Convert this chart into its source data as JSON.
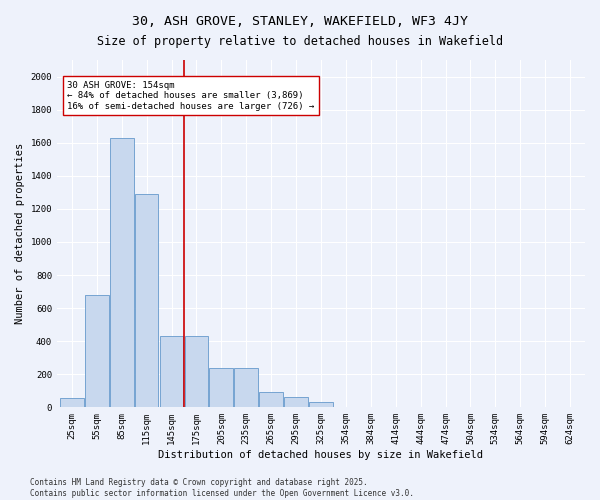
{
  "title": "30, ASH GROVE, STANLEY, WAKEFIELD, WF3 4JY",
  "subtitle": "Size of property relative to detached houses in Wakefield",
  "xlabel": "Distribution of detached houses by size in Wakefield",
  "ylabel": "Number of detached properties",
  "categories": [
    "25sqm",
    "55sqm",
    "85sqm",
    "115sqm",
    "145sqm",
    "175sqm",
    "205sqm",
    "235sqm",
    "265sqm",
    "295sqm",
    "325sqm",
    "354sqm",
    "384sqm",
    "414sqm",
    "444sqm",
    "474sqm",
    "504sqm",
    "534sqm",
    "564sqm",
    "594sqm",
    "624sqm"
  ],
  "values": [
    55,
    680,
    1630,
    1290,
    430,
    430,
    240,
    240,
    90,
    60,
    35,
    0,
    0,
    0,
    0,
    0,
    0,
    0,
    0,
    0,
    0
  ],
  "bar_color": "#c8d8ee",
  "bar_edgecolor": "#6699cc",
  "property_line_x": 4.5,
  "property_line_color": "#cc0000",
  "annotation_text": "30 ASH GROVE: 154sqm\n← 84% of detached houses are smaller (3,869)\n16% of semi-detached houses are larger (726) →",
  "annotation_box_color": "#ffffff",
  "annotation_box_edgecolor": "#cc0000",
  "ylim": [
    0,
    2100
  ],
  "yticks": [
    0,
    200,
    400,
    600,
    800,
    1000,
    1200,
    1400,
    1600,
    1800,
    2000
  ],
  "footer_line1": "Contains HM Land Registry data © Crown copyright and database right 2025.",
  "footer_line2": "Contains public sector information licensed under the Open Government Licence v3.0.",
  "background_color": "#eef2fb",
  "plot_background": "#eef2fb",
  "title_fontsize": 9.5,
  "subtitle_fontsize": 8.5,
  "axis_label_fontsize": 7.5,
  "tick_fontsize": 6.5,
  "annotation_fontsize": 6.5,
  "footer_fontsize": 5.5
}
